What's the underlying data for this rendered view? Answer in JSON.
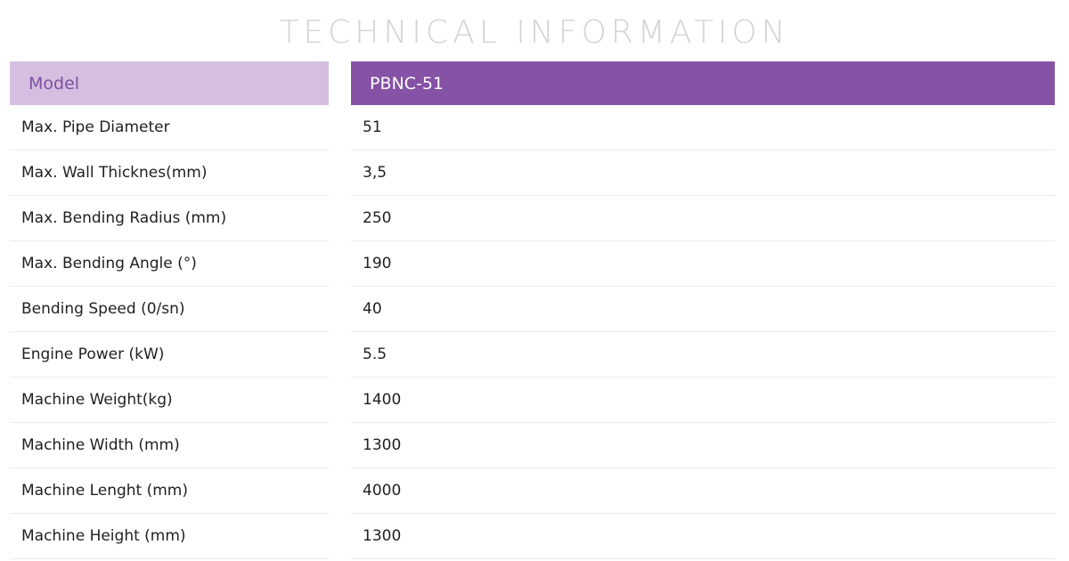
{
  "title": "TECHNICAL INFORMATION",
  "table": {
    "header": {
      "label": "Model",
      "value": "PBNC-51"
    },
    "rows": [
      {
        "label": "Max. Pipe Diameter",
        "value": "51"
      },
      {
        "label": "Max. Wall Thicknes(mm)",
        "value": "3,5"
      },
      {
        "label": "Max. Bending Radius (mm)",
        "value": "250"
      },
      {
        "label": "Max. Bending Angle (°)",
        "value": "190"
      },
      {
        "label": "Bending Speed (0/sn)",
        "value": "40"
      },
      {
        "label": "Engine Power (kW)",
        "value": "5.5"
      },
      {
        "label": "Machine Weight(kg)",
        "value": "1400"
      },
      {
        "label": "Machine Width (mm)",
        "value": "1300"
      },
      {
        "label": "Machine Lenght (mm)",
        "value": "4000"
      },
      {
        "label": "Machine Height (mm)",
        "value": "1300"
      }
    ]
  },
  "colors": {
    "header_label_bg": "#d4bfe0",
    "header_label_text": "#7e4fa0",
    "header_value_bg": "#8552a5",
    "header_value_text": "#ffffff",
    "title_text": "#d4d4d4"
  }
}
